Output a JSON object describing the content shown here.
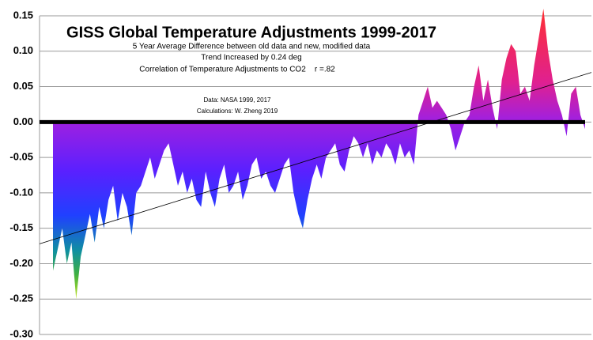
{
  "chart_data": {
    "type": "area",
    "title": "GISS Global Temperature Adjustments 1999-2017",
    "subtitle_lines": [
      "5 Year Average Difference between old data and new, modified data",
      "Trend Increased by 0.24 deg",
      "Correlation of Temperature Adjustments to CO2    r =.82"
    ],
    "source_lines": [
      "Data: NASA 1999, 2017",
      "Calculations: W. Zheng 2019"
    ],
    "values": [
      -0.21,
      -0.18,
      -0.15,
      -0.2,
      -0.17,
      -0.25,
      -0.19,
      -0.16,
      -0.13,
      -0.17,
      -0.12,
      -0.15,
      -0.11,
      -0.09,
      -0.14,
      -0.1,
      -0.12,
      -0.16,
      -0.1,
      -0.09,
      -0.07,
      -0.05,
      -0.08,
      -0.06,
      -0.04,
      -0.03,
      -0.06,
      -0.09,
      -0.07,
      -0.1,
      -0.08,
      -0.11,
      -0.12,
      -0.07,
      -0.1,
      -0.12,
      -0.08,
      -0.06,
      -0.1,
      -0.09,
      -0.07,
      -0.11,
      -0.09,
      -0.06,
      -0.05,
      -0.08,
      -0.07,
      -0.09,
      -0.1,
      -0.08,
      -0.06,
      -0.05,
      -0.1,
      -0.13,
      -0.15,
      -0.11,
      -0.08,
      -0.06,
      -0.08,
      -0.05,
      -0.04,
      -0.03,
      -0.06,
      -0.07,
      -0.04,
      -0.02,
      -0.03,
      -0.05,
      -0.03,
      -0.06,
      -0.04,
      -0.05,
      -0.03,
      -0.04,
      -0.06,
      -0.03,
      -0.05,
      -0.04,
      -0.06,
      0.01,
      0.03,
      0.05,
      0.02,
      0.03,
      0.02,
      0.01,
      -0.01,
      -0.04,
      -0.02,
      0,
      0.01,
      0.05,
      0.08,
      0.03,
      0.06,
      0.02,
      -0.01,
      0.06,
      0.09,
      0.11,
      0.1,
      0.04,
      0.05,
      0.03,
      0.08,
      0.12,
      0.16,
      0.1,
      0.06,
      0.03,
      0.01,
      -0.02,
      0.04,
      0.05,
      0.01,
      -0.01
    ],
    "trend_values": [
      -0.172,
      0.07
    ],
    "ylim": [
      -0.3,
      0.15
    ],
    "yticks": [
      {
        "value": -0.3,
        "label": "-0.30"
      },
      -0.25,
      {
        "value": -0.2,
        "label": "-0.20"
      },
      -0.15,
      {
        "value": -0.1,
        "label": "-0.10"
      },
      -0.05,
      {
        "value": 0,
        "label": "0.00"
      },
      0.05,
      {
        "value": 0.1,
        "label": "0.10"
      },
      0.15
    ],
    "grid": true
  }
}
